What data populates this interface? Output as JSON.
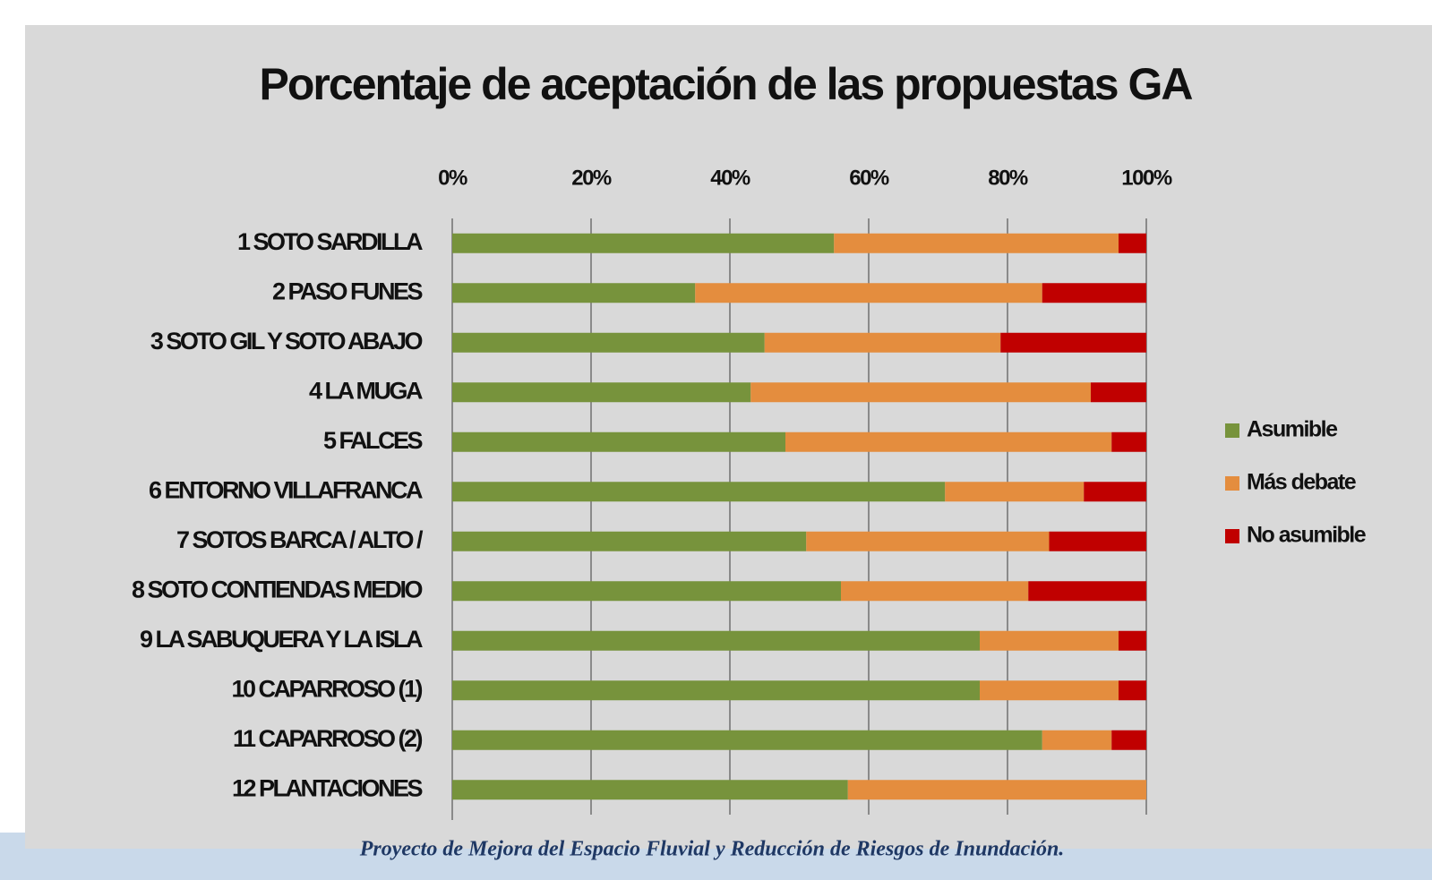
{
  "chart_data": {
    "type": "stacked_barh",
    "title": "Porcentaje de aceptación de las propuestas GA",
    "footer": "Proyecto de Mejora del Espacio Fluvial y Reducción de Riesgos de Inundación.",
    "categories": [
      "1 SOTO SARDILLA",
      "2 PASO FUNES",
      "3 SOTO GIL Y SOTO ABAJO",
      "4 LA MUGA",
      "5 FALCES",
      "6 ENTORNO  VILLAFRANCA",
      "7 SOTOS BARCA / ALTO /",
      "8 SOTO CONTIENDAS  MEDIO",
      "9 LA SABUQUERA  Y LA ISLA",
      "10 CAPARROSO (1)",
      "11 CAPARROSO (2)",
      "12 PLANTACIONES"
    ],
    "series": [
      {
        "name": "Asumible",
        "color": "#77933c",
        "values": [
          55,
          35,
          45,
          43,
          48,
          71,
          51,
          56,
          76,
          76,
          85,
          57
        ]
      },
      {
        "name": "Más debate",
        "color": "#e48d3e",
        "values": [
          41,
          50,
          34,
          49,
          47,
          20,
          35,
          27,
          20,
          20,
          10,
          43
        ]
      },
      {
        "name": "No asumible",
        "color": "#c00000",
        "values": [
          4,
          15,
          21,
          8,
          5,
          9,
          14,
          17,
          4,
          4,
          5,
          0
        ]
      }
    ],
    "xlim": [
      0,
      100
    ],
    "xticks": [
      {
        "value": 0,
        "label": "0%"
      },
      {
        "value": 20,
        "label": "20%"
      },
      {
        "value": 40,
        "label": "40%"
      },
      {
        "value": 60,
        "label": "60%"
      },
      {
        "value": 80,
        "label": "80%"
      },
      {
        "value": 100,
        "label": "100%"
      }
    ],
    "grid": true,
    "legend": "right"
  }
}
